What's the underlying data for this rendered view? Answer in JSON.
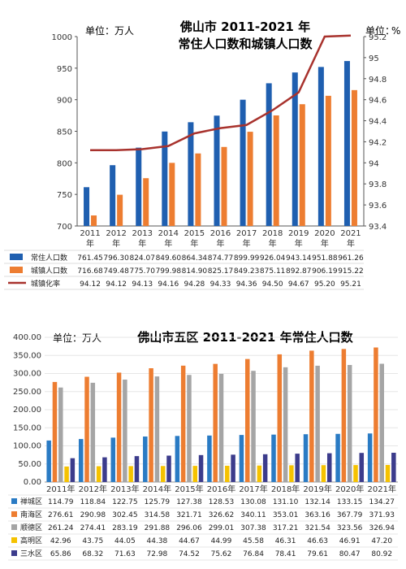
{
  "chart_data": [
    {
      "type": "bar",
      "unit_left": "单位：万人",
      "unit_right": "%",
      "title_line1": "佛山市 2011-2021 年",
      "title_line2": "常住人口数和城镇人口数",
      "categories": [
        "2011年",
        "2012年",
        "2013年",
        "2014年",
        "2015年",
        "2016年",
        "2017年",
        "2018年",
        "2019年",
        "2020年",
        "2021年"
      ],
      "ylim": [
        700,
        1000
      ],
      "yticks": [
        "700",
        "750",
        "800",
        "850",
        "900",
        "950",
        "1000"
      ],
      "y2lim": [
        93.4,
        95.2
      ],
      "y2ticks": [
        "93.4",
        "93.6",
        "93.8",
        "94",
        "94.2",
        "94.4",
        "94.6",
        "94.8",
        "95",
        "95.2"
      ],
      "series": [
        {
          "name": "常住人口数",
          "kind": "bar",
          "color": "#1f5fb0",
          "values": [
            761.45,
            796.3,
            824.07,
            849.6,
            864.34,
            874.77,
            899.99,
            926.04,
            943.14,
            951.88,
            961.26
          ],
          "labels": [
            "761.45",
            "796.30",
            "824.07",
            "849.60",
            "864.34",
            "874.77",
            "899.99",
            "926.04",
            "943.14",
            "951.88",
            "961.26"
          ]
        },
        {
          "name": "城镇人口数",
          "kind": "bar",
          "color": "#ed7d31",
          "values": [
            716.68,
            749.48,
            775.7,
            799.98,
            814.9,
            825.17,
            849.23,
            875.11,
            892.87,
            906.19,
            915.22
          ],
          "labels": [
            "716.68",
            "749.48",
            "775.70",
            "799.98",
            "814.90",
            "825.17",
            "849.23",
            "875.11",
            "892.87",
            "906.19",
            "915.22"
          ]
        },
        {
          "name": "城镇化率",
          "kind": "line",
          "axis": "right",
          "color": "#a8322d",
          "values": [
            94.12,
            94.12,
            94.13,
            94.16,
            94.28,
            94.33,
            94.36,
            94.5,
            94.67,
            95.2,
            95.21
          ],
          "labels": [
            "94.12",
            "94.12",
            "94.13",
            "94.16",
            "94.28",
            "94.33",
            "94.36",
            "94.50",
            "94.67",
            "95.20",
            "95.21"
          ]
        }
      ]
    },
    {
      "type": "bar",
      "unit_left": "单位：万人",
      "title": "佛山市五区 2011-2021 年常住人口数",
      "categories": [
        "2011年",
        "2012年",
        "2013年",
        "2014年",
        "2015年",
        "2016年",
        "2017年",
        "2018年",
        "2019年",
        "2020年",
        "2021年"
      ],
      "ylim": [
        0,
        400
      ],
      "yticks": [
        "0.00",
        "50.00",
        "100.00",
        "150.00",
        "200.00",
        "250.00",
        "300.00",
        "350.00",
        "400.00"
      ],
      "series": [
        {
          "name": "禅城区",
          "color": "#2a7bc4",
          "values": [
            114.79,
            118.84,
            122.75,
            125.79,
            127.38,
            128.53,
            130.08,
            131.1,
            132.14,
            133.15,
            134.27
          ],
          "labels": [
            "114.79",
            "118.84",
            "122.75",
            "125.79",
            "127.38",
            "128.53",
            "130.08",
            "131.10",
            "132.14",
            "133.15",
            "134.27"
          ]
        },
        {
          "name": "南海区",
          "color": "#ed7d31",
          "values": [
            276.61,
            290.98,
            302.45,
            314.58,
            321.71,
            326.62,
            340.11,
            353.01,
            363.16,
            367.79,
            371.93
          ],
          "labels": [
            "276.61",
            "290.98",
            "302.45",
            "314.58",
            "321.71",
            "326.62",
            "340.11",
            "353.01",
            "363.16",
            "367.79",
            "371.93"
          ]
        },
        {
          "name": "顺德区",
          "color": "#a5a5a5",
          "values": [
            261.24,
            274.41,
            283.19,
            291.88,
            296.06,
            299.01,
            307.38,
            317.21,
            321.54,
            323.56,
            326.94
          ],
          "labels": [
            "261.24",
            "274.41",
            "283.19",
            "291.88",
            "296.06",
            "299.01",
            "307.38",
            "317.21",
            "321.54",
            "323.56",
            "326.94"
          ]
        },
        {
          "name": "高明区",
          "color": "#f5c200",
          "values": [
            42.96,
            43.75,
            44.05,
            44.38,
            44.67,
            44.99,
            45.58,
            46.31,
            46.63,
            46.91,
            47.2
          ],
          "labels": [
            "42.96",
            "43.75",
            "44.05",
            "44.38",
            "44.67",
            "44.99",
            "45.58",
            "46.31",
            "46.63",
            "46.91",
            "47.20"
          ]
        },
        {
          "name": "三水区",
          "color": "#3c3c8c",
          "values": [
            65.86,
            68.32,
            71.63,
            72.98,
            74.52,
            75.62,
            76.84,
            78.41,
            79.61,
            80.47,
            80.92
          ],
          "labels": [
            "65.86",
            "68.32",
            "71.63",
            "72.98",
            "74.52",
            "75.62",
            "76.84",
            "78.41",
            "79.61",
            "80.47",
            "80.92"
          ]
        }
      ]
    }
  ]
}
